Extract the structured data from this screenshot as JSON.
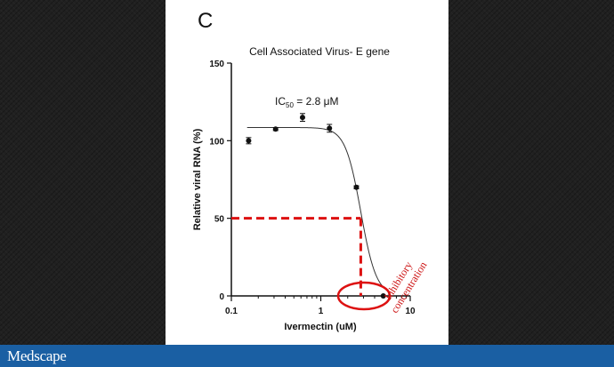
{
  "panel_letter": "C",
  "brand": "Medscape",
  "chart_data": {
    "type": "scatter",
    "title": "Cell Associated Virus- E gene",
    "xlabel": "Ivermectin (uM)",
    "ylabel": "Relative viral RNA (%)",
    "x_scale": "log",
    "xlim": [
      0.1,
      10
    ],
    "ylim": [
      0,
      150
    ],
    "x_ticks": [
      {
        "value": 0.1,
        "label": "0.1"
      },
      {
        "value": 1,
        "label": "1"
      },
      {
        "value": 10,
        "label": "10"
      }
    ],
    "y_ticks": [
      {
        "value": 0,
        "label": "0"
      },
      {
        "value": 50,
        "label": "50"
      },
      {
        "value": 100,
        "label": "100"
      },
      {
        "value": 150,
        "label": "150"
      }
    ],
    "series": [
      {
        "points": [
          {
            "x": 0.156,
            "y": 100,
            "err": 2
          },
          {
            "x": 0.3125,
            "y": 107.5,
            "err": 1
          },
          {
            "x": 0.625,
            "y": 115,
            "err": 2.5
          },
          {
            "x": 1.25,
            "y": 108,
            "err": 2.5
          },
          {
            "x": 2.5,
            "y": 70,
            "err": 1
          },
          {
            "x": 5,
            "y": 0,
            "err": 0.5
          }
        ],
        "fit": {
          "top": 108.5,
          "bottom": 0,
          "ic50": 2.8,
          "hill": 5
        }
      }
    ],
    "annotations": {
      "ic50_prefix": "IC",
      "ic50_sub": "50",
      "ic50_suffix": " = 2.8 μM",
      "reference_y": 50,
      "reference_x": 2.8,
      "highlight_color": "#dd1111",
      "annotation_line1": "Inhibitory",
      "annotation_line2": "concentration"
    }
  }
}
